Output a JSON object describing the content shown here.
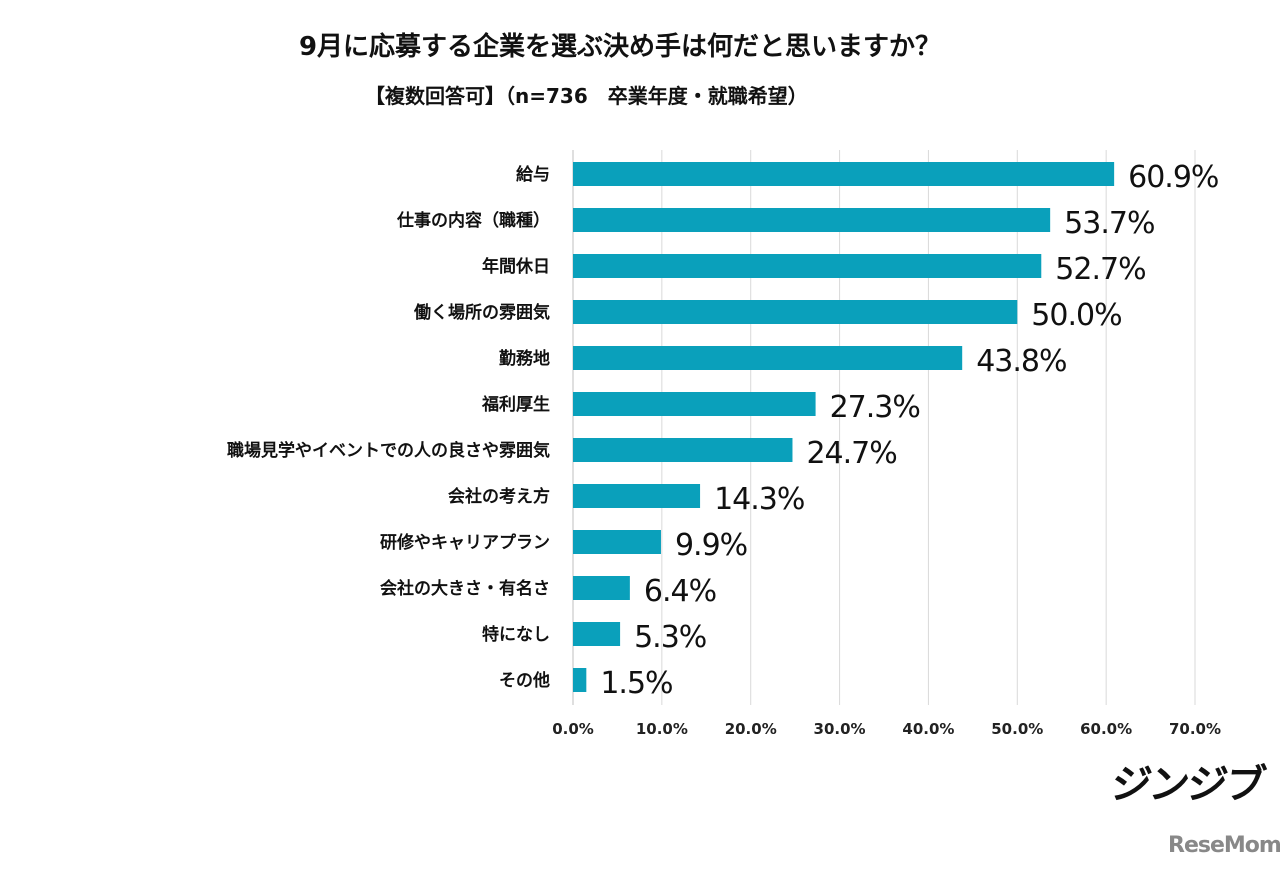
{
  "chart_data": {
    "type": "bar",
    "orientation": "horizontal",
    "title": "9月に応募する企業を選ぶ決め手は何だと思いますか？",
    "subtitle": "【複数回答可】（n=736　卒業年度・就職希望）",
    "categories": [
      "給与",
      "仕事の内容（職種）",
      "年間休日",
      "働く場所の雰囲気",
      "勤務地",
      "福利厚生",
      "職場見学やイベントでの人の良さや雰囲気",
      "会社の考え方",
      "研修やキャリアプラン",
      "会社の大きさ・有名さ",
      "特になし",
      "その他"
    ],
    "values": [
      60.9,
      53.7,
      52.7,
      50.0,
      43.8,
      27.3,
      24.7,
      14.3,
      9.9,
      6.4,
      5.3,
      1.5
    ],
    "data_labels": [
      "60.9%",
      "53.7%",
      "52.7%",
      "50.0%",
      "43.8%",
      "27.3%",
      "24.7%",
      "14.3%",
      "9.9%",
      "6.4%",
      "5.3%",
      "1.5%"
    ],
    "xlim": [
      0,
      70
    ],
    "xticks": [
      "0.0%",
      "10.0%",
      "20.0%",
      "30.0%",
      "40.0%",
      "50.0%",
      "60.0%",
      "70.0%"
    ],
    "grid": true,
    "bar_color": "#0aa0bb"
  },
  "logos": {
    "brand": "ジンジブ",
    "source": "ReseMom"
  }
}
